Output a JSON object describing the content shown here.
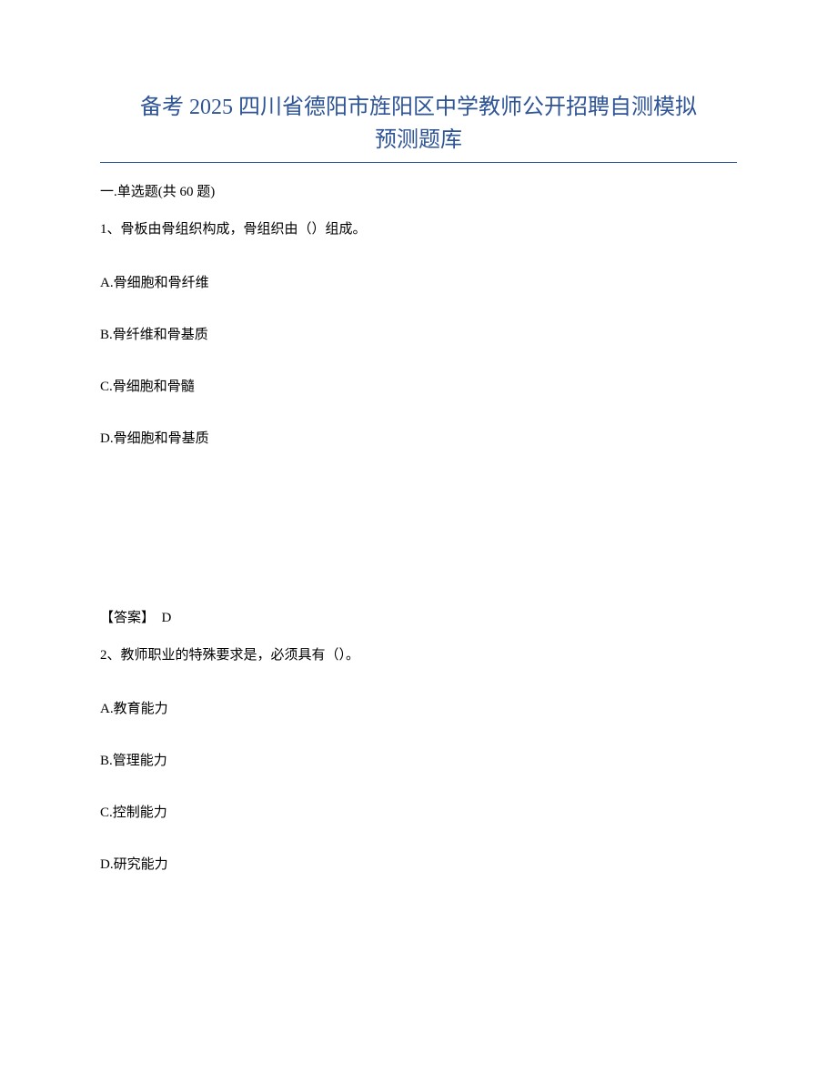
{
  "title": {
    "line1": "备考 2025 四川省德阳市旌阳区中学教师公开招聘自测模拟",
    "line2": "预测题库",
    "color": "#2e5496",
    "fontsize": 24
  },
  "section_header": "一.单选题(共 60 题)",
  "question1": {
    "number": "1、",
    "text": "骨板由骨组织构成，骨组织由（）组成。",
    "options": {
      "A": "A.骨细胞和骨纤维",
      "B": "B.骨纤维和骨基质",
      "C": "C.骨细胞和骨髓",
      "D": "D.骨细胞和骨基质"
    },
    "answer_label": "【答案】",
    "answer_value": "D"
  },
  "question2": {
    "number": "2、",
    "text": "教师职业的特殊要求是，必须具有（）。",
    "options": {
      "A": "A.教育能力",
      "B": "B.管理能力",
      "C": "C.控制能力",
      "D": "D.研究能力"
    }
  },
  "styling": {
    "body_fontsize": 15,
    "text_color": "#000000",
    "background_color": "#ffffff",
    "underline_color": "#2e5496"
  }
}
